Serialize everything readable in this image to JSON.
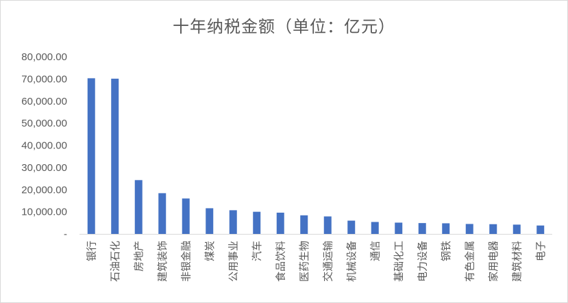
{
  "chart_data": {
    "type": "bar",
    "title": "十年纳税金额（单位：亿元）",
    "xlabel": "",
    "ylabel": "",
    "ylim": [
      0,
      80000
    ],
    "yticks": [
      0,
      10000,
      20000,
      30000,
      40000,
      50000,
      60000,
      70000,
      80000
    ],
    "ytick_labels": [
      "-",
      "10,000.00",
      "20,000.00",
      "30,000.00",
      "40,000.00",
      "50,000.00",
      "60,000.00",
      "70,000.00",
      "80,000.00"
    ],
    "grid": false,
    "legend": "none",
    "bar_color": "#4472c4",
    "categories": [
      "银行",
      "石油石化",
      "房地产",
      "建筑装饰",
      "非银金融",
      "煤炭",
      "公用事业",
      "汽车",
      "食品饮料",
      "医药生物",
      "交通运输",
      "机械设备",
      "通信",
      "基础化工",
      "电力设备",
      "钢铁",
      "有色金属",
      "家用电器",
      "建筑材料",
      "电子"
    ],
    "values": [
      70300,
      70100,
      24300,
      18400,
      16000,
      11600,
      10700,
      10000,
      9600,
      8400,
      7900,
      6000,
      5400,
      5100,
      4900,
      4800,
      4500,
      4400,
      4200,
      3800
    ]
  }
}
